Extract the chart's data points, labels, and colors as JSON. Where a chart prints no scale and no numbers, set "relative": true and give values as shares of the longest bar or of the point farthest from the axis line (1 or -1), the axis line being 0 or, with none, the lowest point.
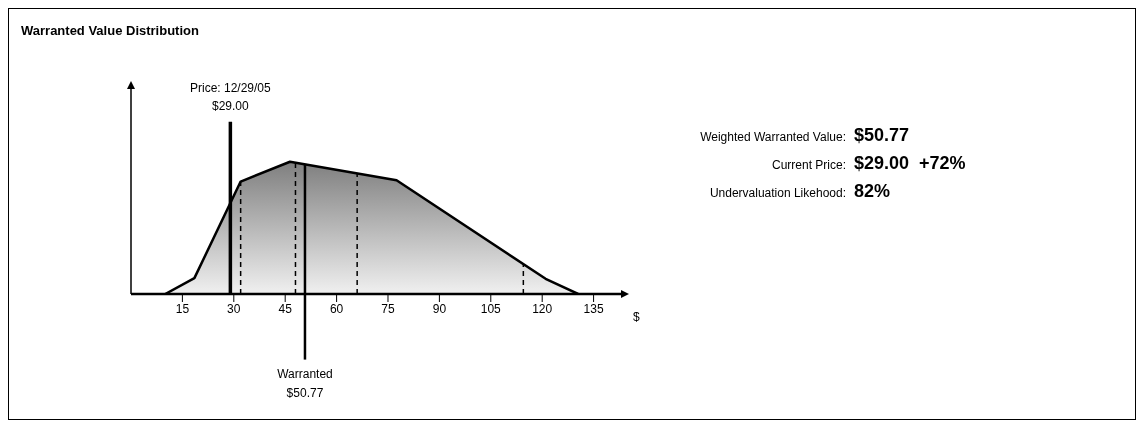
{
  "chart_data": {
    "type": "area",
    "title": "Warranted Value Distribution",
    "xlabel": "$",
    "relative": true,
    "x": [
      10,
      18.5,
      32,
      46.4,
      77.5,
      121,
      130.5
    ],
    "series": [
      {
        "color": "#000000",
        "values": [
          0,
          0.12,
          0.85,
          1,
          0.86,
          0.115,
          0
        ]
      }
    ],
    "xlim": [
      0,
      143
    ],
    "xticks": [
      15,
      30,
      45,
      60,
      75,
      90,
      105,
      120,
      135
    ],
    "ref_lines": [
      {
        "axis": "x",
        "value": 29,
        "label": "Price: 12/29/05\n$29.00"
      },
      {
        "axis": "x",
        "value": 50.77,
        "label": "Warranted\n$50.77"
      },
      {
        "axis": "x",
        "value": 32,
        "line_style": "dashed"
      },
      {
        "axis": "x",
        "value": 48,
        "line_style": "dashed"
      },
      {
        "axis": "x",
        "value": 66,
        "line_style": "dashed"
      },
      {
        "axis": "x",
        "value": 114.5,
        "line_style": "dashed"
      }
    ],
    "annotations": [
      "Weighted Warranted Value:",
      "$50.77",
      "Current Price:",
      "$29.00  +72%",
      "Undervaluation Likehood:",
      "82%"
    ]
  }
}
